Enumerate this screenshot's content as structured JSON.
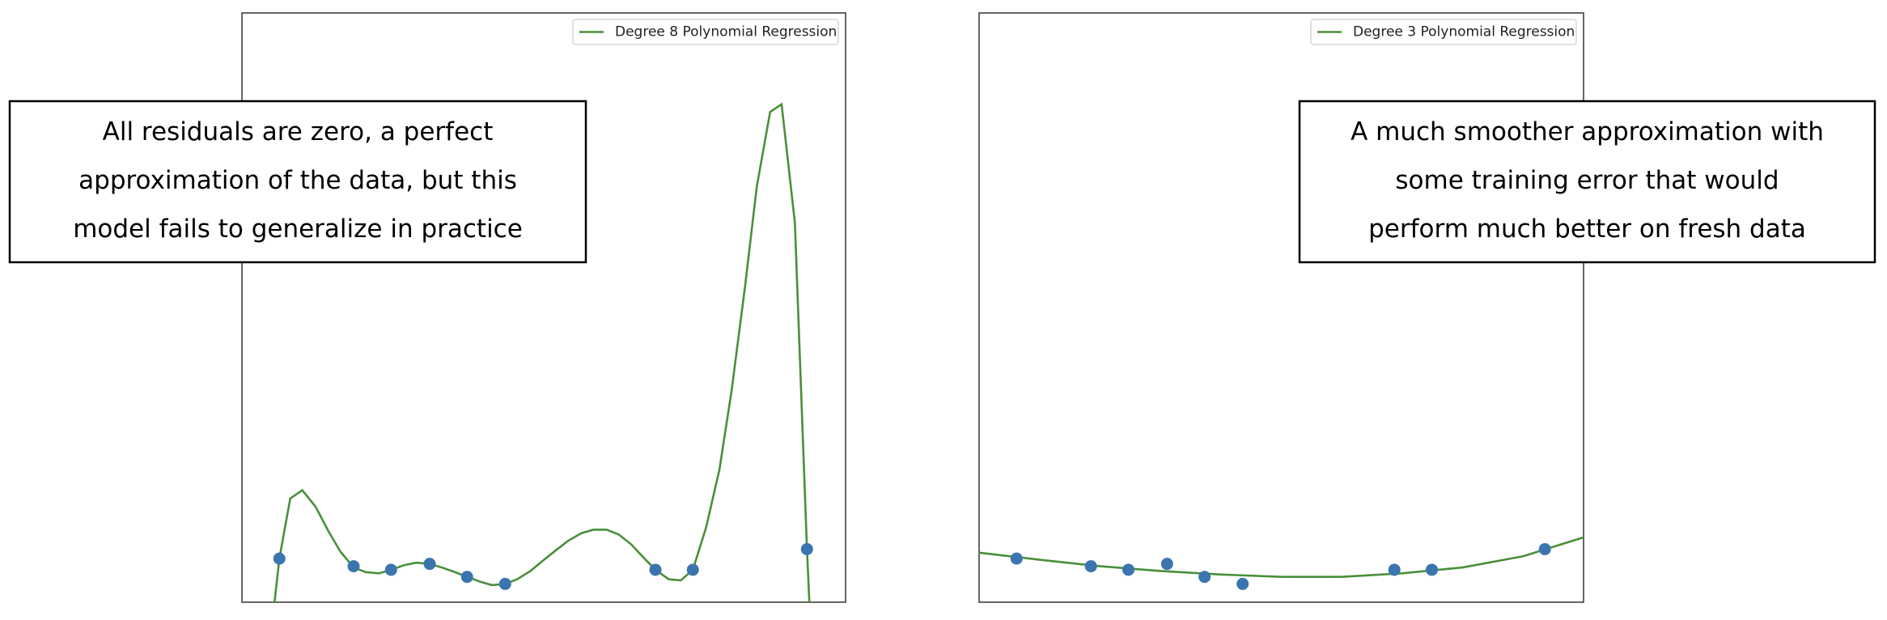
{
  "chart_data": [
    {
      "type": "line",
      "xlim": [
        0,
        10
      ],
      "ylim": [
        0,
        10
      ],
      "legend": "upper right",
      "series": [
        {
          "name": "Degree 8 Polynomial Regression",
          "color": "#4a8f3a",
          "x": [
            0.54,
            0.62,
            0.8,
            1.0,
            1.22,
            1.43,
            1.63,
            1.85,
            2.05,
            2.27,
            2.47,
            2.69,
            2.89,
            3.11,
            3.31,
            3.53,
            3.73,
            3.94,
            4.14,
            4.36,
            4.56,
            4.78,
            4.98,
            5.2,
            5.4,
            5.62,
            5.82,
            6.04,
            6.24,
            6.45,
            6.65,
            6.85,
            7.07,
            7.27,
            7.47,
            7.69,
            7.91,
            8.11,
            8.33,
            8.53,
            8.75,
            8.94,
            9.16,
            9.36,
            9.4
          ],
          "values": [
            0,
            0.74,
            1.76,
            1.9,
            1.62,
            1.21,
            0.86,
            0.59,
            0.51,
            0.49,
            0.55,
            0.63,
            0.67,
            0.65,
            0.59,
            0.51,
            0.43,
            0.35,
            0.29,
            0.31,
            0.39,
            0.53,
            0.7,
            0.88,
            1.04,
            1.17,
            1.23,
            1.23,
            1.15,
            0.98,
            0.76,
            0.55,
            0.39,
            0.37,
            0.55,
            1.27,
            2.25,
            3.58,
            5.32,
            7.06,
            8.32,
            8.45,
            6.44,
            0.9,
            0
          ]
        }
      ],
      "scatter": {
        "color": "#3b75af",
        "x": [
          0.62,
          1.85,
          2.47,
          3.11,
          3.73,
          4.36,
          6.85,
          7.47,
          9.36
        ],
        "values": [
          0.74,
          0.61,
          0.55,
          0.65,
          0.43,
          0.31,
          0.55,
          0.55,
          0.9
        ]
      },
      "annotation": [
        "All residuals are zero, a perfect",
        "approximation of the data, but this",
        "model fails to generalize in practice"
      ]
    },
    {
      "type": "line",
      "xlim": [
        0,
        10
      ],
      "ylim": [
        0,
        10
      ],
      "legend": "upper right",
      "series": [
        {
          "name": "Degree 3 Polynomial Regression",
          "color": "#4a8f3a",
          "x": [
            0,
            1,
            2,
            3,
            4,
            5,
            6,
            7,
            8,
            9,
            10
          ],
          "values": [
            0.84,
            0.72,
            0.61,
            0.53,
            0.47,
            0.43,
            0.43,
            0.49,
            0.59,
            0.78,
            1.1
          ]
        }
      ],
      "scatter": {
        "color": "#3b75af",
        "x": [
          0.62,
          1.85,
          2.47,
          3.11,
          3.73,
          4.36,
          6.87,
          7.49,
          9.36
        ],
        "values": [
          0.74,
          0.61,
          0.55,
          0.65,
          0.43,
          0.31,
          0.55,
          0.55,
          0.9
        ]
      },
      "annotation": [
        "A much smoother approximation with",
        "some training error that would",
        "perform much better on fresh data"
      ]
    }
  ]
}
